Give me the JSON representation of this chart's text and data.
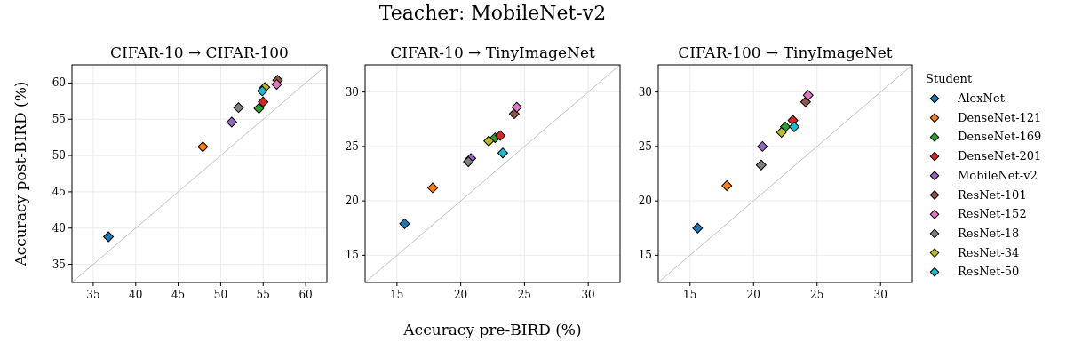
{
  "chart_data": [
    {
      "type": "scatter",
      "title": "CIFAR-10 → CIFAR-100",
      "ylabel": "Accuracy post-BIRD (%)",
      "xlim": [
        32.5,
        62.5
      ],
      "ylim": [
        32.5,
        62.5
      ],
      "xticks": [
        35,
        40,
        45,
        50,
        55,
        60
      ],
      "yticks": [
        35,
        40,
        45,
        50,
        55,
        60
      ],
      "grid": true,
      "marker": "diamond",
      "series": [
        {
          "type": "line",
          "marker": "none",
          "color": "#c0c0c0",
          "x": [
            32.5,
            62.5
          ],
          "values": [
            32.5,
            62.5
          ]
        },
        {
          "color": "#1f77b4",
          "x": [
            36.8
          ],
          "values": [
            38.8
          ]
        },
        {
          "color": "#ff7f0e",
          "x": [
            47.9
          ],
          "values": [
            51.2
          ]
        },
        {
          "color": "#2ca02c",
          "x": [
            54.5
          ],
          "values": [
            56.5
          ]
        },
        {
          "color": "#d62728",
          "x": [
            55.0
          ],
          "values": [
            57.4
          ]
        },
        {
          "color": "#9467bd",
          "x": [
            51.3
          ],
          "values": [
            54.6
          ]
        },
        {
          "color": "#8c564b",
          "x": [
            56.7
          ],
          "values": [
            60.4
          ]
        },
        {
          "color": "#e377c2",
          "x": [
            56.6
          ],
          "values": [
            59.8
          ]
        },
        {
          "color": "#7f7f7f",
          "x": [
            52.1
          ],
          "values": [
            56.6
          ]
        },
        {
          "color": "#bcbd22",
          "x": [
            55.2
          ],
          "values": [
            59.4
          ]
        },
        {
          "color": "#17becf",
          "x": [
            54.9
          ],
          "values": [
            58.9
          ]
        }
      ]
    },
    {
      "type": "scatter",
      "title": "CIFAR-10 → TinyImageNet",
      "xlabel": "Accuracy pre-BIRD (%)",
      "annotations": [
        "Teacher: MobileNet-v2"
      ],
      "xlim": [
        12.5,
        32.5
      ],
      "ylim": [
        12.5,
        32.5
      ],
      "xticks": [
        15,
        20,
        25,
        30
      ],
      "yticks": [
        15,
        20,
        25,
        30
      ],
      "grid": true,
      "marker": "diamond",
      "series": [
        {
          "type": "line",
          "marker": "none",
          "color": "#c0c0c0",
          "x": [
            12.5,
            32.5
          ],
          "values": [
            12.5,
            32.5
          ]
        },
        {
          "color": "#1f77b4",
          "x": [
            15.6
          ],
          "values": [
            17.9
          ]
        },
        {
          "color": "#ff7f0e",
          "x": [
            17.8
          ],
          "values": [
            21.2
          ]
        },
        {
          "color": "#2ca02c",
          "x": [
            22.7
          ],
          "values": [
            25.8
          ]
        },
        {
          "color": "#d62728",
          "x": [
            23.1
          ],
          "values": [
            26.0
          ]
        },
        {
          "color": "#9467bd",
          "x": [
            20.8
          ],
          "values": [
            23.9
          ]
        },
        {
          "color": "#8c564b",
          "x": [
            24.2
          ],
          "values": [
            28.0
          ]
        },
        {
          "color": "#e377c2",
          "x": [
            24.4
          ],
          "values": [
            28.6
          ]
        },
        {
          "color": "#7f7f7f",
          "x": [
            20.6
          ],
          "values": [
            23.6
          ]
        },
        {
          "color": "#bcbd22",
          "x": [
            22.2
          ],
          "values": [
            25.5
          ]
        },
        {
          "color": "#17becf",
          "x": [
            23.3
          ],
          "values": [
            24.4
          ]
        }
      ]
    },
    {
      "type": "scatter",
      "title": "CIFAR-100 → TinyImageNet",
      "legend_title": "Student",
      "legend": "right",
      "xlim": [
        12.5,
        32.5
      ],
      "ylim": [
        12.5,
        32.5
      ],
      "xticks": [
        15,
        20,
        25,
        30
      ],
      "yticks": [
        15,
        20,
        25,
        30
      ],
      "grid": true,
      "marker": "diamond",
      "series": [
        {
          "type": "line",
          "marker": "none",
          "color": "#c0c0c0",
          "x": [
            12.5,
            32.5
          ],
          "values": [
            12.5,
            32.5
          ]
        },
        {
          "name": "AlexNet",
          "color": "#1f77b4",
          "x": [
            15.6
          ],
          "values": [
            17.5
          ]
        },
        {
          "name": "DenseNet-121",
          "color": "#ff7f0e",
          "x": [
            17.9
          ],
          "values": [
            21.4
          ]
        },
        {
          "name": "DenseNet-169",
          "color": "#2ca02c",
          "x": [
            22.5
          ],
          "values": [
            26.8
          ]
        },
        {
          "name": "DenseNet-201",
          "color": "#d62728",
          "x": [
            23.1
          ],
          "values": [
            27.4
          ]
        },
        {
          "name": "MobileNet-v2",
          "color": "#9467bd",
          "x": [
            20.7
          ],
          "values": [
            25.0
          ]
        },
        {
          "name": "ResNet-101",
          "color": "#8c564b",
          "x": [
            24.1
          ],
          "values": [
            29.1
          ]
        },
        {
          "name": "ResNet-152",
          "color": "#e377c2",
          "x": [
            24.3
          ],
          "values": [
            29.7
          ]
        },
        {
          "name": "ResNet-18",
          "color": "#7f7f7f",
          "x": [
            20.6
          ],
          "values": [
            23.3
          ]
        },
        {
          "name": "ResNet-34",
          "color": "#bcbd22",
          "x": [
            22.2
          ],
          "values": [
            26.3
          ]
        },
        {
          "name": "ResNet-50",
          "color": "#17becf",
          "x": [
            23.2
          ],
          "values": [
            26.8
          ]
        }
      ]
    }
  ]
}
